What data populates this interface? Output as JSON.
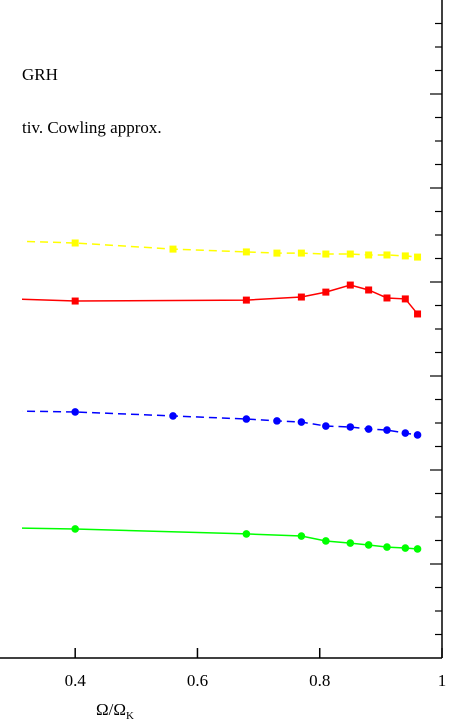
{
  "chart_data": {
    "type": "line",
    "annotations": [
      "GRH",
      "tiv. Cowling approx."
    ],
    "xlabel": "Ω/Ω",
    "xlabel_subscript": "K",
    "xlim": [
      0.313,
      1.0
    ],
    "xticks": [
      0.4,
      0.6,
      0.8,
      1
    ],
    "ylim": [
      0,
      28
    ],
    "yticks": [
      1,
      2,
      3,
      4,
      5,
      6,
      7,
      8,
      9,
      10,
      11,
      12,
      13,
      14,
      15,
      16,
      17,
      18,
      19,
      20,
      21,
      22,
      23,
      24,
      25,
      26,
      27
    ],
    "series": [
      {
        "color": "#ffff00",
        "dash": true,
        "marker": "square",
        "x": [
          0.3,
          0.4,
          0.56,
          0.68,
          0.73,
          0.77,
          0.81,
          0.85,
          0.88,
          0.91,
          0.94,
          0.96
        ],
        "values": [
          17.74,
          17.66,
          17.4,
          17.28,
          17.23,
          17.23,
          17.19,
          17.19,
          17.15,
          17.15,
          17.11,
          17.06
        ]
      },
      {
        "color": "#ff0000",
        "dash": false,
        "marker": "square",
        "x": [
          0.3,
          0.4,
          0.68,
          0.77,
          0.81,
          0.85,
          0.88,
          0.91,
          0.94,
          0.96
        ],
        "values": [
          15.28,
          15.19,
          15.23,
          15.36,
          15.57,
          15.87,
          15.66,
          15.32,
          15.28,
          14.64
        ]
      },
      {
        "color": "#0000ff",
        "dash": true,
        "marker": "circle",
        "x": [
          0.3,
          0.4,
          0.56,
          0.68,
          0.73,
          0.77,
          0.81,
          0.85,
          0.88,
          0.91,
          0.94,
          0.96
        ],
        "values": [
          10.51,
          10.47,
          10.3,
          10.17,
          10.09,
          10.04,
          9.87,
          9.83,
          9.74,
          9.7,
          9.57,
          9.49
        ]
      },
      {
        "color": "#00ff00",
        "dash": false,
        "marker": "circle",
        "x": [
          0.3,
          0.4,
          0.68,
          0.77,
          0.81,
          0.85,
          0.88,
          0.91,
          0.94,
          0.96
        ],
        "values": [
          5.53,
          5.49,
          5.28,
          5.19,
          4.98,
          4.89,
          4.81,
          4.72,
          4.68,
          4.64
        ]
      }
    ]
  }
}
